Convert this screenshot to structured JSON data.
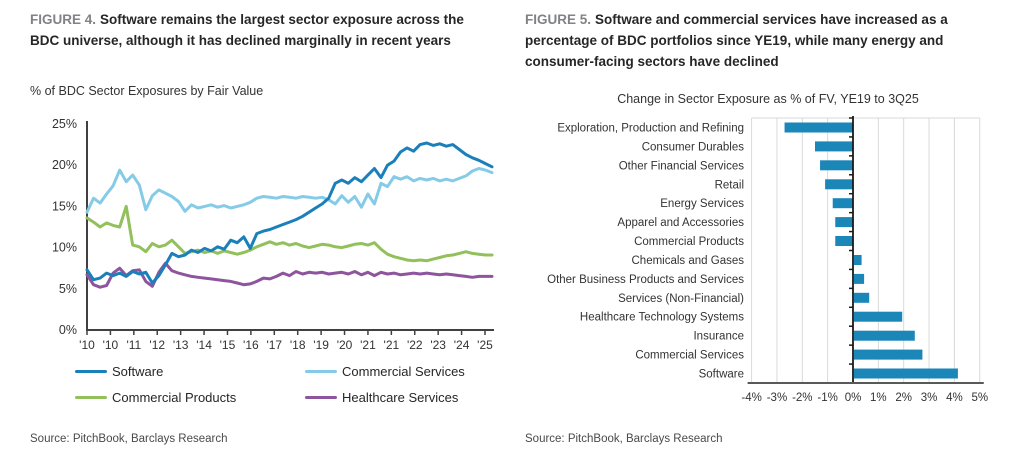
{
  "figure4": {
    "label": "FIGURE 4.",
    "title": "Software remains the largest sector exposure across the BDC universe, although it has declined marginally in recent years",
    "subtitle": "% of BDC Sector Exposures by Fair Value",
    "source": "Source: PitchBook, Barclays Research"
  },
  "figure5": {
    "label": "FIGURE 5.",
    "title": "Software and commercial services have increased as a percentage of BDC portfolios since YE19, while many energy and consumer-facing sectors have declined",
    "subtitle": "Change in Sector Exposure as % of FV, YE19 to 3Q25",
    "source": "Source: PitchBook, Barclays Research"
  },
  "colors": {
    "software": "#1b7fba",
    "commercial_services": "#85cbe8",
    "commercial_products": "#92c05a",
    "healthcare_services": "#8e559e",
    "bar": "#1b86b8",
    "gridline": "#d9d9d9",
    "axis": "#404040"
  },
  "chart_data": [
    {
      "type": "line",
      "title": "% of BDC Sector Exposures by Fair Value",
      "xlabel": "",
      "ylabel": "",
      "ylim": [
        0,
        25
      ],
      "y_ticks": [
        0,
        5,
        10,
        15,
        20,
        25
      ],
      "y_tick_suffix": "%",
      "x_tick_labels": [
        "'10",
        "'10",
        "'11",
        "'12",
        "'13",
        "'14",
        "'15",
        "'16",
        "'17",
        "'18",
        "'19",
        "'20",
        "'21",
        "'21",
        "'22",
        "'23",
        "'24",
        "'25"
      ],
      "x_unit": "quarterly, 2010Q1 to 2025Q3",
      "grid": false,
      "legend_position": "bottom",
      "series": [
        {
          "name": "Software",
          "color": "#1b7fba",
          "values": [
            7.3,
            6.1,
            6.3,
            6.9,
            6.6,
            6.9,
            6.5,
            7.1,
            6.8,
            7.0,
            5.7,
            6.6,
            7.9,
            9.3,
            8.9,
            9.1,
            9.7,
            9.4,
            9.9,
            9.6,
            10.1,
            9.8,
            10.9,
            10.6,
            11.3,
            9.9,
            11.7,
            12.0,
            12.2,
            12.5,
            12.8,
            13.1,
            13.4,
            13.8,
            14.3,
            14.8,
            15.3,
            16.0,
            17.8,
            18.2,
            17.8,
            18.5,
            18.0,
            18.8,
            19.6,
            18.5,
            20.0,
            20.5,
            21.6,
            22.1,
            21.7,
            22.5,
            22.7,
            22.4,
            22.6,
            22.3,
            22.5,
            21.9,
            21.3,
            20.9,
            20.6,
            20.2,
            19.8
          ]
        },
        {
          "name": "Commercial Services",
          "color": "#85cbe8",
          "values": [
            14.3,
            16.0,
            15.4,
            16.5,
            17.5,
            19.4,
            18.0,
            18.8,
            17.6,
            14.6,
            16.3,
            17.0,
            16.6,
            16.2,
            15.6,
            14.4,
            15.2,
            14.8,
            15.0,
            15.2,
            14.9,
            15.1,
            14.8,
            15.0,
            15.2,
            15.5,
            16.0,
            16.2,
            16.1,
            16.0,
            16.2,
            16.1,
            16.0,
            16.2,
            16.1,
            16.0,
            16.1,
            15.8,
            15.3,
            16.3,
            15.5,
            16.2,
            14.9,
            16.5,
            15.3,
            17.8,
            17.4,
            18.6,
            18.3,
            18.6,
            18.1,
            18.4,
            18.2,
            18.4,
            18.1,
            18.3,
            18.1,
            18.4,
            18.7,
            19.3,
            19.6,
            19.4,
            19.1
          ]
        },
        {
          "name": "Commercial Products",
          "color": "#92c05a",
          "values": [
            13.6,
            13.1,
            12.5,
            13.0,
            12.7,
            12.5,
            15.0,
            10.3,
            10.1,
            9.5,
            10.5,
            10.1,
            10.3,
            10.9,
            10.1,
            9.3,
            9.5,
            9.7,
            9.4,
            9.6,
            9.3,
            9.6,
            9.4,
            9.2,
            9.4,
            9.7,
            10.1,
            10.4,
            10.7,
            10.4,
            10.6,
            10.3,
            10.5,
            10.2,
            10.0,
            10.2,
            10.4,
            10.3,
            10.1,
            10.0,
            10.2,
            10.4,
            10.5,
            10.3,
            10.6,
            9.8,
            9.2,
            8.9,
            8.7,
            8.5,
            8.4,
            8.5,
            8.4,
            8.6,
            8.8,
            9.0,
            9.1,
            9.3,
            9.5,
            9.3,
            9.2,
            9.1,
            9.1
          ]
        },
        {
          "name": "Healthcare Services",
          "color": "#8e559e",
          "values": [
            6.7,
            5.5,
            5.2,
            5.4,
            6.9,
            7.5,
            6.6,
            7.2,
            7.3,
            5.9,
            5.3,
            7.0,
            8.1,
            7.2,
            6.9,
            6.7,
            6.5,
            6.4,
            6.3,
            6.2,
            6.1,
            6.0,
            5.9,
            5.7,
            5.5,
            5.6,
            5.9,
            6.3,
            6.2,
            6.5,
            6.9,
            6.6,
            7.1,
            6.8,
            7.0,
            6.9,
            7.0,
            6.8,
            6.9,
            7.0,
            6.8,
            7.1,
            6.7,
            7.0,
            6.6,
            7.0,
            6.8,
            6.9,
            6.7,
            6.8,
            6.9,
            6.8,
            6.9,
            6.8,
            6.7,
            6.8,
            6.7,
            6.6,
            6.5,
            6.4,
            6.5,
            6.5,
            6.5
          ]
        }
      ]
    },
    {
      "type": "bar",
      "orientation": "horizontal",
      "title": "Change in Sector Exposure as % of FV, YE19 to 3Q25",
      "xlabel": "",
      "ylabel": "",
      "xlim": [
        -4,
        5
      ],
      "x_ticks": [
        "-4%",
        "-3%",
        "-2%",
        "-1%",
        "0%",
        "1%",
        "2%",
        "3%",
        "4%",
        "5%"
      ],
      "x_tick_values": [
        -4,
        -3,
        -2,
        -1,
        0,
        1,
        2,
        3,
        4,
        5
      ],
      "grid": true,
      "bar_color": "#1b86b8",
      "categories": [
        "Exploration, Production and Refining",
        "Consumer Durables",
        "Other Financial Services",
        "Retail",
        "Energy Services",
        "Apparel and Accessories",
        "Commercial Products",
        "Chemicals and Gases",
        "Other Business Products and Services",
        "Services (Non-Financial)",
        "Healthcare Technology Systems",
        "Insurance",
        "Commercial Services",
        "Software"
      ],
      "values": [
        -2.7,
        -1.5,
        -1.3,
        -1.1,
        -0.8,
        -0.7,
        -0.7,
        0.3,
        0.4,
        0.6,
        1.9,
        2.4,
        2.7,
        4.1
      ]
    }
  ]
}
